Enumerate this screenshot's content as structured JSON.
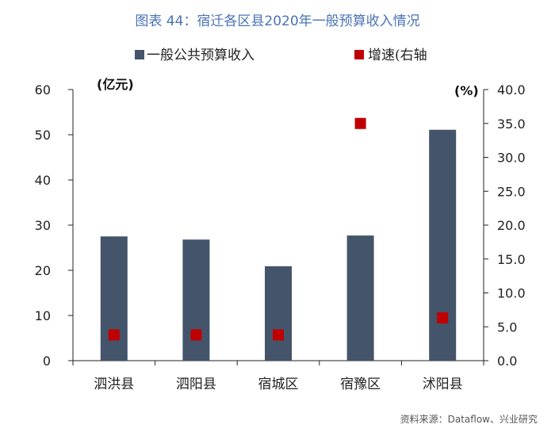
{
  "title": "图表 44：宿迁各区县2020年一般预算收入情况",
  "source": "资料来源：Dataflow、兴业研究",
  "colors": {
    "bar": "#44546a",
    "marker": "#c00000",
    "title": "#4a73b5"
  },
  "chart_data": {
    "type": "bar",
    "categories": [
      "泗洪县",
      "泗阳县",
      "宿城区",
      "宿豫区",
      "沭阳县"
    ],
    "series": [
      {
        "name": "一般公共预算收入",
        "type": "bar",
        "axis": "left",
        "values": [
          27.5,
          26.8,
          20.9,
          27.7,
          51.1
        ]
      },
      {
        "name": "增速(右轴",
        "type": "scatter",
        "axis": "right",
        "values": [
          3.8,
          3.8,
          3.8,
          35.0,
          6.3
        ]
      }
    ],
    "left_axis": {
      "unit": "(亿元)",
      "ylim": [
        0,
        60
      ],
      "ticks": [
        "0",
        "10",
        "20",
        "30",
        "40",
        "50",
        "60"
      ]
    },
    "right_axis": {
      "unit": "(%)",
      "ylim": [
        0,
        40
      ],
      "ticks": [
        "0.0",
        "5.0",
        "10.0",
        "15.0",
        "20.0",
        "25.0",
        "30.0",
        "35.0",
        "40.0"
      ]
    },
    "legend_position": "top",
    "grid": false
  }
}
